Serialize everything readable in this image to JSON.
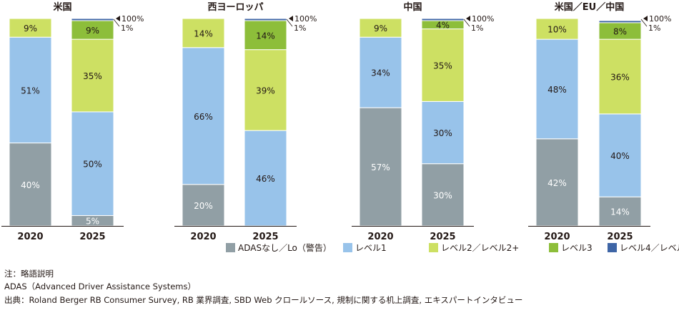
{
  "chart_data": {
    "type": "bar",
    "stacked": true,
    "percent_scale": true,
    "ylim": [
      0,
      100
    ],
    "series_order": [
      "ADASなし／Lo（警告）",
      "レベル1",
      "レベル2／レベル2+",
      "レベル3",
      "レベル4／レベル5"
    ],
    "series_colors": {
      "ADASなし／Lo（警告）": "#919fa5",
      "レベル1": "#98c3ea",
      "レベル2／レベル2+": "#cde063",
      "レベル3": "#8dbe3a",
      "レベル4／レベル5": "#3e65a6"
    },
    "total_label": "100%",
    "panels": [
      {
        "title": "米国",
        "categories": [
          "2020",
          "2025"
        ],
        "series": [
          {
            "name": "ADASなし／Lo（警告）",
            "values": [
              40,
              5
            ],
            "labels": [
              "40%",
              "5%"
            ]
          },
          {
            "name": "レベル1",
            "values": [
              51,
              50
            ],
            "labels": [
              "51%",
              "50%"
            ]
          },
          {
            "name": "レベル2／レベル2+",
            "values": [
              9,
              35
            ],
            "labels": [
              "9%",
              "35%"
            ]
          },
          {
            "name": "レベル3",
            "values": [
              0,
              9
            ],
            "labels": [
              "",
              "9%"
            ]
          },
          {
            "name": "レベル4／レベル5",
            "values": [
              0,
              1
            ],
            "labels": [
              "",
              "1%"
            ]
          }
        ]
      },
      {
        "title": "西ヨーロッパ",
        "categories": [
          "2020",
          "2025"
        ],
        "series": [
          {
            "name": "ADASなし／Lo（警告）",
            "values": [
              20,
              0
            ],
            "labels": [
              "20%",
              ""
            ]
          },
          {
            "name": "レベル1",
            "values": [
              66,
              46
            ],
            "labels": [
              "66%",
              "46%"
            ]
          },
          {
            "name": "レベル2／レベル2+",
            "values": [
              14,
              39
            ],
            "labels": [
              "14%",
              "39%"
            ]
          },
          {
            "name": "レベル3",
            "values": [
              0,
              14
            ],
            "labels": [
              "",
              "14%"
            ]
          },
          {
            "name": "レベル4／レベル5",
            "values": [
              0,
              1
            ],
            "labels": [
              "",
              "1%"
            ]
          }
        ]
      },
      {
        "title": "中国",
        "categories": [
          "2020",
          "2025"
        ],
        "series": [
          {
            "name": "ADASなし／Lo（警告）",
            "values": [
              57,
              30
            ],
            "labels": [
              "57%",
              "30%"
            ]
          },
          {
            "name": "レベル1",
            "values": [
              34,
              30
            ],
            "labels": [
              "34%",
              "30%"
            ]
          },
          {
            "name": "レベル2／レベル2+",
            "values": [
              9,
              35
            ],
            "labels": [
              "9%",
              "35%"
            ]
          },
          {
            "name": "レベル3",
            "values": [
              0,
              4
            ],
            "labels": [
              "",
              "4%"
            ]
          },
          {
            "name": "レベル4／レベル5",
            "values": [
              0,
              1
            ],
            "labels": [
              "",
              "1%"
            ]
          }
        ]
      },
      {
        "title": "米国／EU／中国",
        "categories": [
          "2020",
          "2025"
        ],
        "series": [
          {
            "name": "ADASなし／Lo（警告）",
            "values": [
              42,
              14
            ],
            "labels": [
              "42%",
              "14%"
            ]
          },
          {
            "name": "レベル1",
            "values": [
              48,
              40
            ],
            "labels": [
              "48%",
              "40%"
            ]
          },
          {
            "name": "レベル2／レベル2+",
            "values": [
              10,
              36
            ],
            "labels": [
              "10%",
              "36%"
            ]
          },
          {
            "name": "レベル3",
            "values": [
              0,
              8
            ],
            "labels": [
              "",
              "8%"
            ]
          },
          {
            "name": "レベル4／レベル5",
            "values": [
              0,
              1
            ],
            "labels": [
              "",
              "1%"
            ]
          }
        ]
      }
    ],
    "legend": {
      "placement": "bottom-right",
      "entries": [
        "ADASなし／Lo（警告）",
        "レベル1",
        "レベル2／レベル2+",
        "レベル3",
        "レベル4／レベル5"
      ]
    }
  },
  "notes": {
    "note_heading": "注：略語説明",
    "note_body": "ADAS（Advanced Driver Assistance Systems）",
    "source": "出典：Roland Berger RB Consumer Survey, RB 業界調査, SBD Web クロールソース, 規制に関する机上調査, エキスパートインタビュー"
  }
}
